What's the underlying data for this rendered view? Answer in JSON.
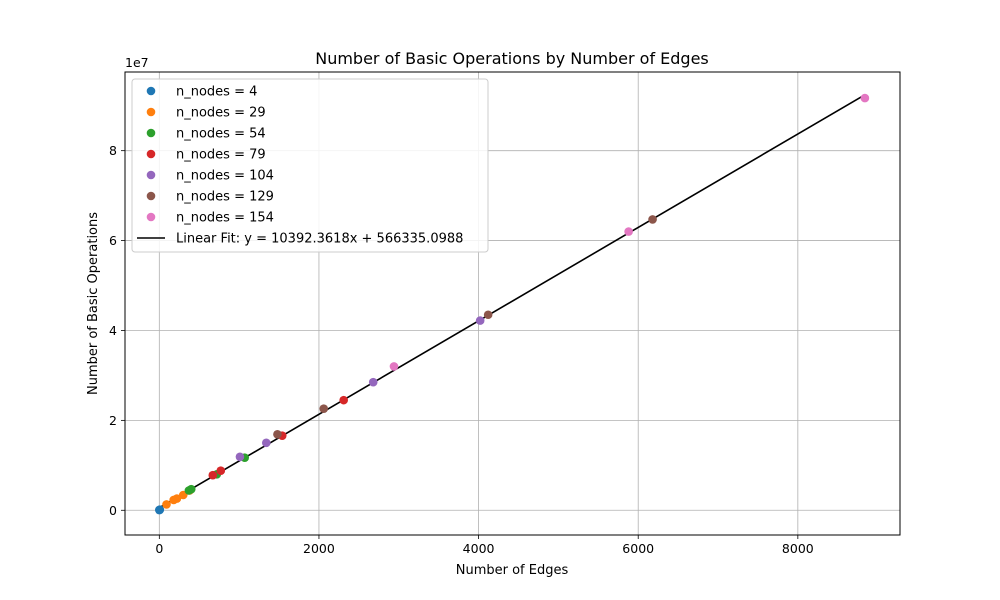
{
  "chart_data": {
    "type": "scatter",
    "title": "Number of Basic Operations by Number of Edges",
    "xlabel": "Number of Edges",
    "ylabel": "Number of Basic Operations",
    "y_offset_label": "1e7",
    "xlim": [
      -430,
      9280
    ],
    "ylim": [
      -5500000,
      97500000
    ],
    "xticks": [
      0,
      2000,
      4000,
      6000,
      8000
    ],
    "xtick_labels": [
      "0",
      "2000",
      "4000",
      "6000",
      "8000"
    ],
    "yticks": [
      0,
      20000000,
      40000000,
      60000000,
      80000000
    ],
    "ytick_labels": [
      "0",
      "2",
      "4",
      "6",
      "8"
    ],
    "grid": true,
    "legend_position": "upper-left",
    "series": [
      {
        "name": "n_nodes = 4",
        "color": "#1f77b4",
        "points": [
          [
            0,
            50000
          ],
          [
            3,
            100000
          ],
          [
            6,
            120000
          ]
        ]
      },
      {
        "name": "n_nodes = 29",
        "color": "#ff7f0e",
        "points": [
          [
            90,
            1300000
          ],
          [
            180,
            2300000
          ],
          [
            220,
            2600000
          ],
          [
            300,
            3400000
          ],
          [
            380,
            4400000
          ]
        ]
      },
      {
        "name": "n_nodes = 54",
        "color": "#2ca02c",
        "points": [
          [
            370,
            4400000
          ],
          [
            400,
            4700000
          ],
          [
            720,
            8000000
          ],
          [
            1070,
            11700000
          ]
        ]
      },
      {
        "name": "n_nodes = 79",
        "color": "#d62728",
        "points": [
          [
            670,
            7800000
          ],
          [
            770,
            8800000
          ],
          [
            1540,
            16600000
          ],
          [
            2310,
            24500000
          ]
        ]
      },
      {
        "name": "n_nodes = 104",
        "color": "#9467bd",
        "points": [
          [
            1010,
            11900000
          ],
          [
            1340,
            15000000
          ],
          [
            2680,
            28500000
          ],
          [
            4020,
            42200000
          ]
        ]
      },
      {
        "name": "n_nodes = 129",
        "color": "#8c564b",
        "points": [
          [
            1480,
            16900000
          ],
          [
            2060,
            22600000
          ],
          [
            4120,
            43500000
          ],
          [
            6180,
            64700000
          ]
        ]
      },
      {
        "name": "n_nodes = 154",
        "color": "#e377c2",
        "points": [
          [
            2940,
            32000000
          ],
          [
            5880,
            62000000
          ],
          [
            8840,
            91700000
          ]
        ]
      }
    ],
    "fit_line": {
      "label": "Linear Fit: y = 10392.3618x + 566335.0988",
      "slope": 10392.3618,
      "intercept": 566335.0988,
      "x_range": [
        0,
        8840
      ],
      "color": "#000000"
    }
  }
}
